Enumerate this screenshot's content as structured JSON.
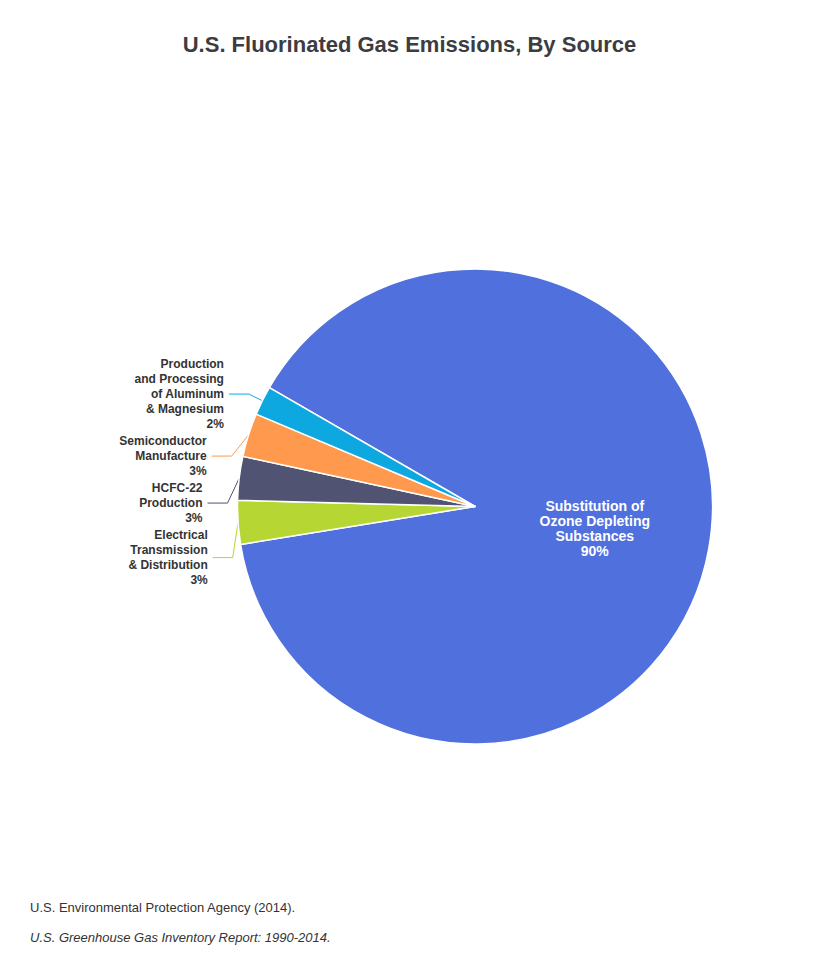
{
  "chart_data": {
    "type": "pie",
    "title": "U.S. Fluorinated Gas Emissions, By Source",
    "categories": [
      "Substitution of\nOzone Depleting\nSubstances",
      "Electrical\nTransmission\n& Distribution",
      "HCFC-22\nProduction",
      "Semiconductor\nManufacture",
      "Production\nand Processing\nof Aluminum\n& Magnesium"
    ],
    "values": [
      90,
      3,
      3,
      3,
      2
    ],
    "value_labels": [
      "90%",
      "3%",
      "3%",
      "3%",
      "2%"
    ],
    "data_labels": true,
    "legend": false,
    "annotations": [
      "U.S. Environmental Protection Agency (2014).",
      "U.S. Greenhouse Gas Inventory Report: 1990-2014."
    ]
  }
}
